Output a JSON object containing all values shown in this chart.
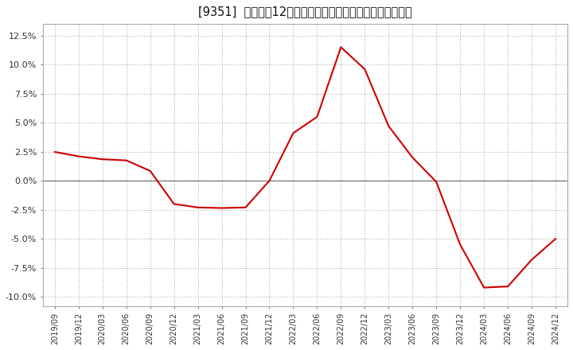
{
  "title": "[9351]  売上高の12か月移動合計の対前年同期増減率の推移",
  "line_color": "#cc0000",
  "background_color": "#ffffff",
  "grid_color": "#aaaaaa",
  "ylim": [
    -0.108,
    0.135
  ],
  "yticks": [
    -0.1,
    -0.075,
    -0.05,
    -0.025,
    0.0,
    0.025,
    0.05,
    0.075,
    0.1,
    0.125
  ],
  "x_labels": [
    "2019/09",
    "2019/12",
    "2020/03",
    "2020/06",
    "2020/09",
    "2020/12",
    "2021/03",
    "2021/06",
    "2021/09",
    "2021/12",
    "2022/03",
    "2022/06",
    "2022/09",
    "2022/12",
    "2023/03",
    "2023/06",
    "2023/09",
    "2023/12",
    "2024/03",
    "2024/06",
    "2024/09",
    "2024/12"
  ],
  "y_values": [
    0.0248,
    0.021,
    0.0185,
    0.0175,
    0.0085,
    -0.02,
    -0.023,
    -0.0235,
    -0.023,
    0.0,
    0.041,
    0.055,
    0.115,
    0.096,
    0.047,
    0.02,
    -0.001,
    -0.055,
    -0.092,
    -0.091,
    -0.068,
    -0.05
  ],
  "figsize": [
    7.2,
    4.4
  ],
  "dpi": 100,
  "title_fontsize": 10.5,
  "tick_fontsize": 8,
  "linewidth": 1.5
}
